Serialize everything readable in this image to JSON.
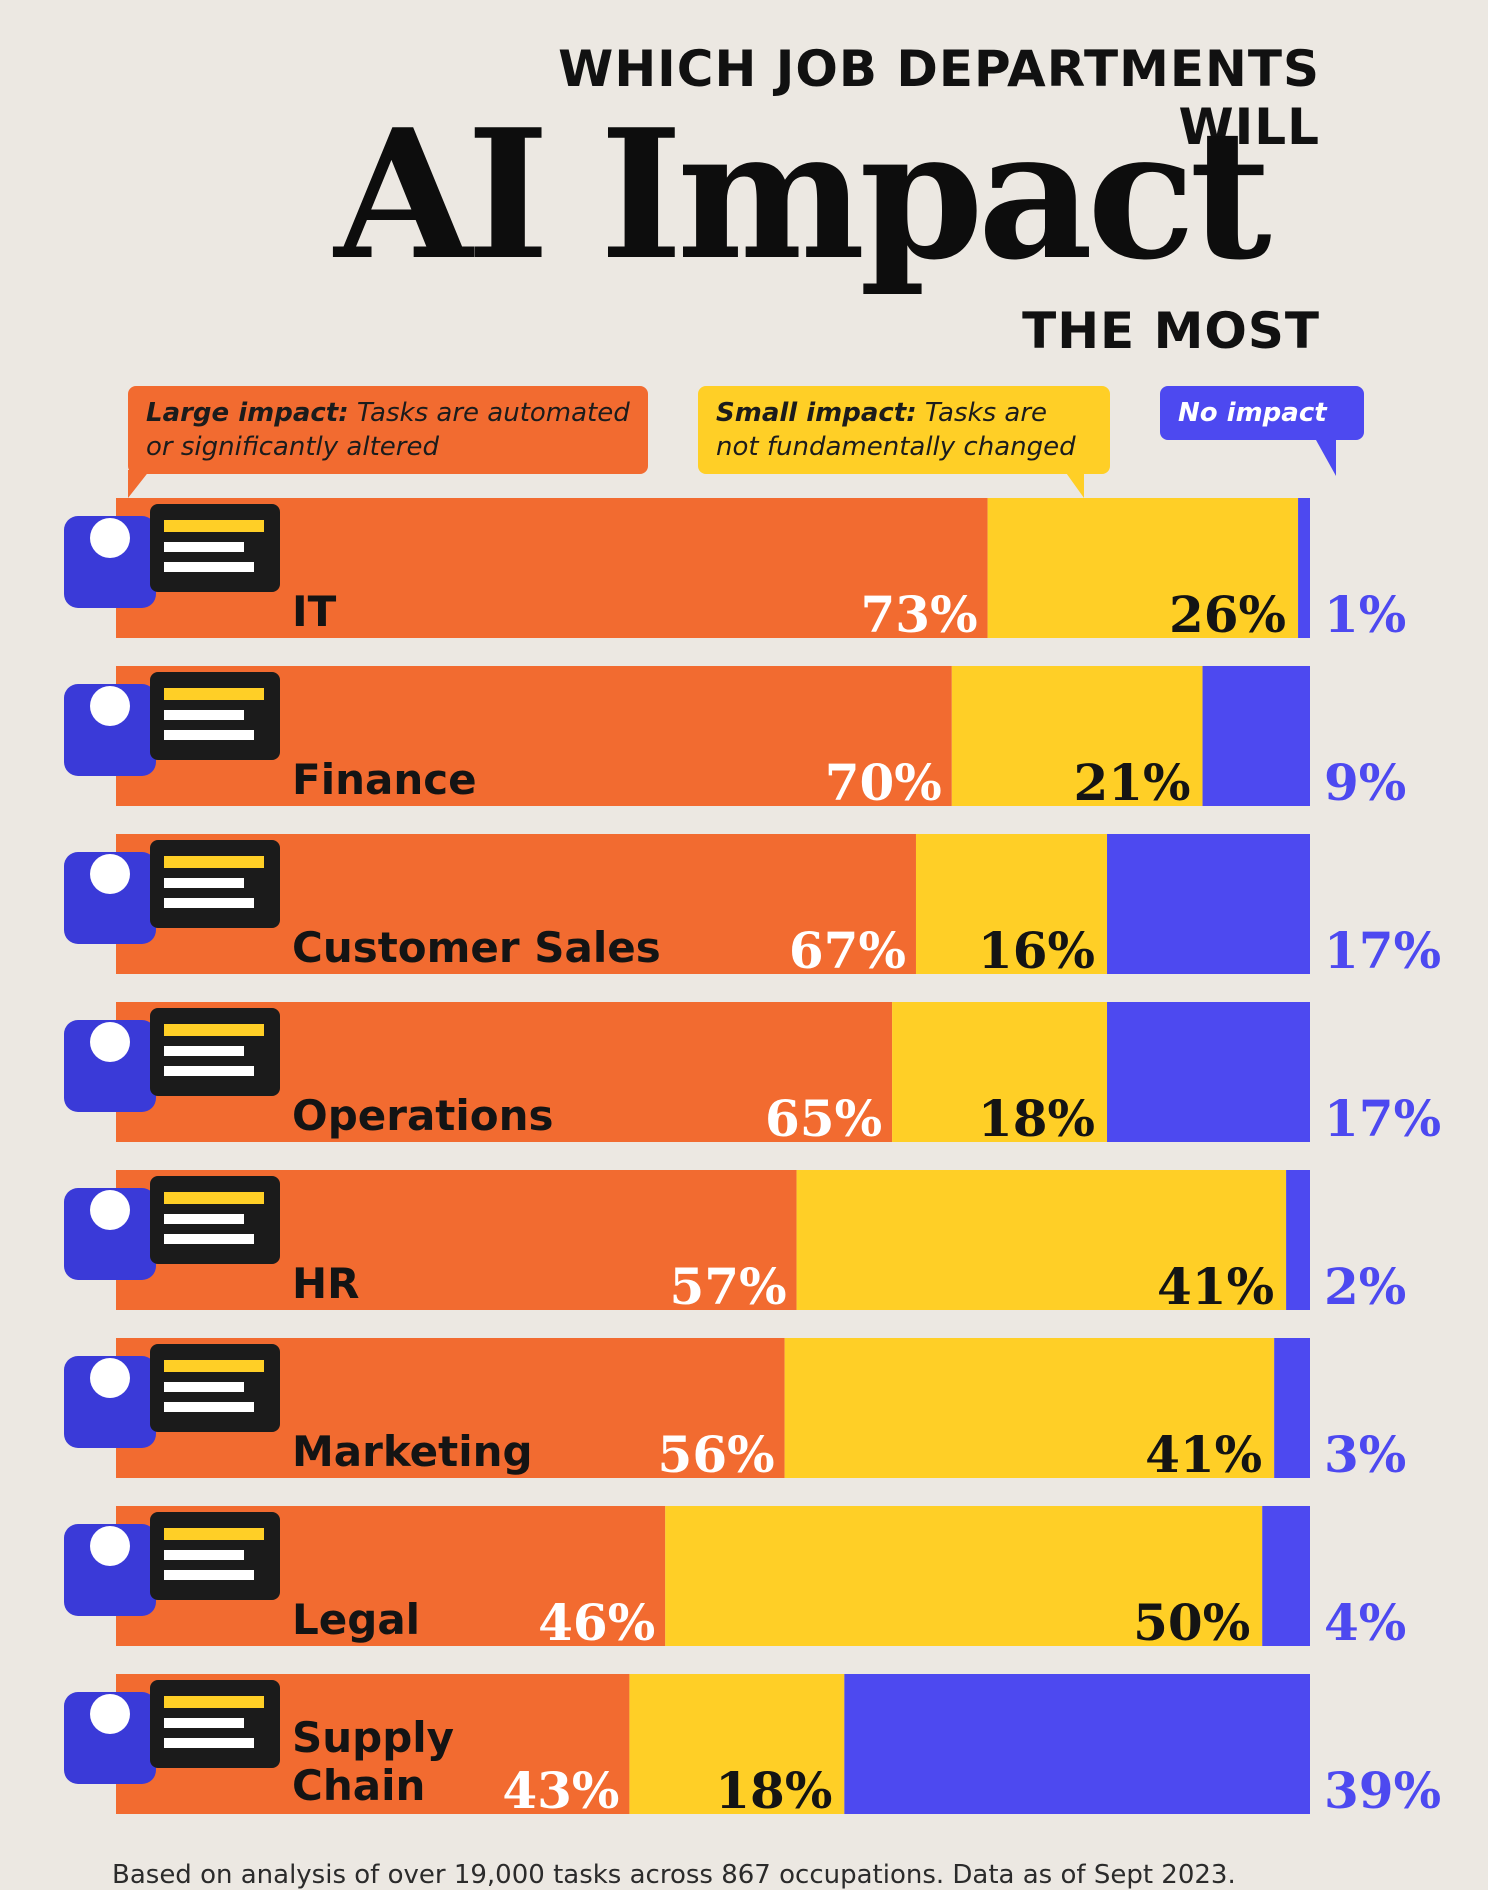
{
  "header": {
    "title_top": "WHICH JOB DEPARTMENTS WILL",
    "title_main": "AI Impact",
    "title_bottom": "THE MOST"
  },
  "legend": {
    "large_bold": "Large impact:",
    "large_text": " Tasks are automated or significantly altered",
    "small_bold": "Small impact:",
    "small_text": " Tasks are not fundamentally changed",
    "none_text": "No impact"
  },
  "colors": {
    "large": "#f26b30",
    "small": "#ffcf26",
    "none": "#4d49f0",
    "background": "#ece8e2"
  },
  "chart_data": {
    "type": "bar",
    "orientation": "horizontal",
    "stacked": true,
    "categories": [
      "IT",
      "Finance",
      "Customer Sales",
      "Operations",
      "HR",
      "Marketing",
      "Legal",
      "Supply Chain"
    ],
    "series": [
      {
        "name": "Large impact",
        "values": [
          73,
          70,
          67,
          65,
          57,
          56,
          46,
          43
        ]
      },
      {
        "name": "Small impact",
        "values": [
          26,
          21,
          16,
          18,
          41,
          41,
          50,
          18
        ]
      },
      {
        "name": "No impact",
        "values": [
          1,
          9,
          17,
          17,
          2,
          3,
          4,
          39
        ]
      }
    ],
    "unit": "%",
    "xlim": [
      0,
      100
    ],
    "legend_position": "top"
  },
  "footnote": "Based on analysis of over 19,000 tasks across 867 occupations. Data as of Sept 2023."
}
